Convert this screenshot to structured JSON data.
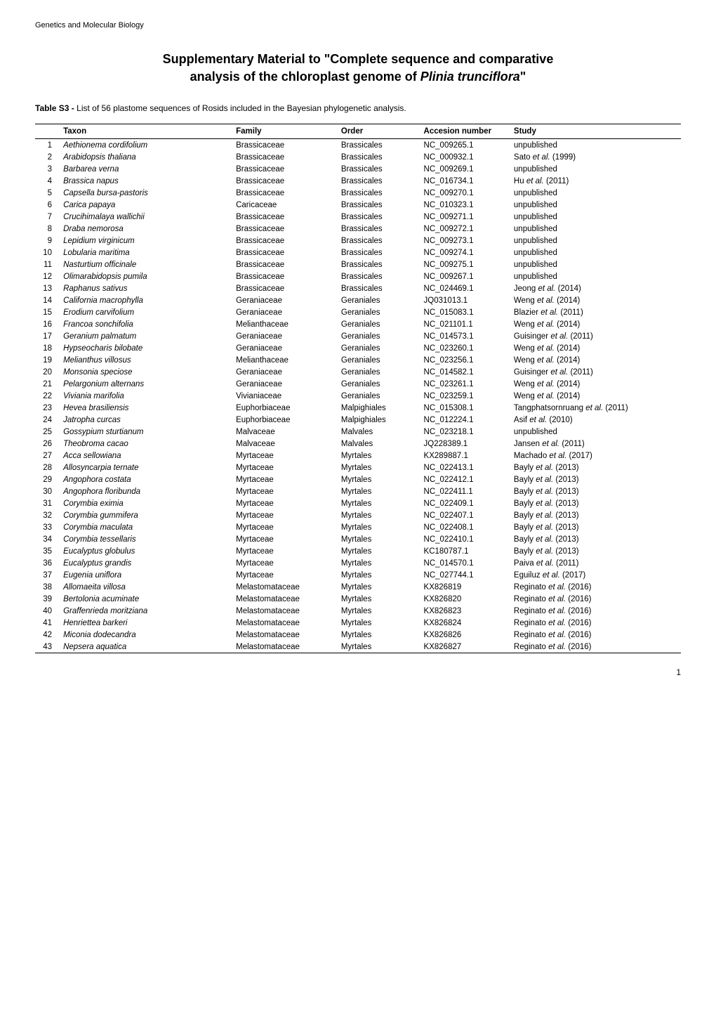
{
  "journal": "Genetics and Molecular Biology",
  "title_line1": "Supplementary Material to \"Complete sequence and comparative",
  "title_line2_prefix": "analysis of the chloroplast genome of ",
  "title_line2_italic": "Plinia trunciflora",
  "title_line2_suffix": "\"",
  "table_caption_bold": "Table S3 - ",
  "table_caption_text": "List of 56 plastome sequences of Rosids included in the Bayesian phylogenetic analysis.",
  "columns": {
    "taxon": "Taxon",
    "family": "Family",
    "order": "Order",
    "accession": "Accesion number",
    "study": "Study"
  },
  "rows": [
    {
      "n": "1",
      "taxon": "Aethionema cordifolium",
      "family": "Brassicaceae",
      "order": "Brassicales",
      "accession": "NC_009265.1",
      "study": "unpublished"
    },
    {
      "n": "2",
      "taxon": "Arabidopsis thaliana",
      "family": "Brassicaceae",
      "order": "Brassicales",
      "accession": "NC_000932.1",
      "author": "Sato",
      "etal": true,
      "year": "(1999)"
    },
    {
      "n": "3",
      "taxon": "Barbarea verna",
      "family": "Brassicaceae",
      "order": "Brassicales",
      "accession": "NC_009269.1",
      "study": "unpublished"
    },
    {
      "n": "4",
      "taxon": "Brassica napus",
      "family": "Brassicaceae",
      "order": "Brassicales",
      "accession": "NC_016734.1",
      "author": "Hu",
      "etal": true,
      "year": "(2011)"
    },
    {
      "n": "5",
      "taxon": "Capsella bursa-pastoris",
      "family": "Brassicaceae",
      "order": "Brassicales",
      "accession": "NC_009270.1",
      "study": "unpublished"
    },
    {
      "n": "6",
      "taxon": "Carica papaya",
      "family": "Caricaceae",
      "order": "Brassicales",
      "accession": "NC_010323.1",
      "study": "unpublished"
    },
    {
      "n": "7",
      "taxon": "Crucihimalaya wallichii",
      "family": "Brassicaceae",
      "order": "Brassicales",
      "accession": "NC_009271.1",
      "study": "unpublished"
    },
    {
      "n": "8",
      "taxon": "Draba nemorosa",
      "family": "Brassicaceae",
      "order": "Brassicales",
      "accession": "NC_009272.1",
      "study": "unpublished"
    },
    {
      "n": "9",
      "taxon": "Lepidium virginicum",
      "family": "Brassicaceae",
      "order": "Brassicales",
      "accession": "NC_009273.1",
      "study": "unpublished"
    },
    {
      "n": "10",
      "taxon": "Lobularia maritima",
      "family": "Brassicaceae",
      "order": "Brassicales",
      "accession": "NC_009274.1",
      "study": "unpublished"
    },
    {
      "n": "11",
      "taxon": "Nasturtium officinale",
      "family": "Brassicaceae",
      "order": "Brassicales",
      "accession": "NC_009275.1",
      "study": "unpublished"
    },
    {
      "n": "12",
      "taxon": "Olimarabidopsis pumila",
      "family": "Brassicaceae",
      "order": "Brassicales",
      "accession": "NC_009267.1",
      "study": "unpublished"
    },
    {
      "n": "13",
      "taxon": "Raphanus sativus",
      "family": "Brassicaceae",
      "order": "Brassicales",
      "accession": "NC_024469.1",
      "author": "Jeong",
      "etal": true,
      "year": "(2014)"
    },
    {
      "n": "14",
      "taxon": "California macrophylla",
      "family": "Geraniaceae",
      "order": "Geraniales",
      "accession": "JQ031013.1",
      "author": "Weng",
      "etal": true,
      "year": "(2014)"
    },
    {
      "n": "15",
      "taxon": "Erodium carvifolium",
      "family": "Geraniaceae",
      "order": "Geraniales",
      "accession": "NC_015083.1",
      "author": "Blazier",
      "etal": true,
      "year": "(2011)"
    },
    {
      "n": "16",
      "taxon": "Francoa sonchifolia",
      "family": "Melianthaceae",
      "order": "Geraniales",
      "accession": "NC_021101.1",
      "author": "Weng",
      "etal": true,
      "year": "(2014)"
    },
    {
      "n": "17",
      "taxon": "Geranium palmatum",
      "family": "Geraniaceae",
      "order": "Geraniales",
      "accession": "NC_014573.1",
      "author": "Guisinger",
      "etal": true,
      "year": "(2011)"
    },
    {
      "n": "18",
      "taxon": "Hypseocharis bilobate",
      "family": "Geraniaceae",
      "order": "Geraniales",
      "accession": "NC_023260.1",
      "author": "Weng",
      "etal": true,
      "year": "(2014)"
    },
    {
      "n": "19",
      "taxon": "Melianthus villosus",
      "family": "Melianthaceae",
      "order": "Geraniales",
      "accession": "NC_023256.1",
      "author": "Weng",
      "etal": true,
      "year": "(2014)"
    },
    {
      "n": "20",
      "taxon": "Monsonia speciose",
      "family": "Geraniaceae",
      "order": "Geraniales",
      "accession": "NC_014582.1",
      "author": "Guisinger",
      "etal": true,
      "year": "(2011)"
    },
    {
      "n": "21",
      "taxon": "Pelargonium alternans",
      "family": "Geraniaceae",
      "order": "Geraniales",
      "accession": "NC_023261.1",
      "author": "Weng",
      "etal": true,
      "year": "(2014)"
    },
    {
      "n": "22",
      "taxon": "Viviania marifolia",
      "family": "Vivianiaceae",
      "order": "Geraniales",
      "accession": "NC_023259.1",
      "author": "Weng",
      "etal": true,
      "year": "(2014)"
    },
    {
      "n": "23",
      "taxon": "Hevea brasiliensis",
      "family": "Euphorbiaceae",
      "order": "Malpighiales",
      "accession": "NC_015308.1",
      "author": "Tangphatsornruang",
      "etal": true,
      "year": "(2011)"
    },
    {
      "n": "24",
      "taxon": "Jatropha curcas",
      "family": "Euphorbiaceae",
      "order": "Malpighiales",
      "accession": "NC_012224.1",
      "author": "Asif",
      "etal": true,
      "year": "(2010)"
    },
    {
      "n": "25",
      "taxon": "Gossypium sturtianum",
      "family": "Malvaceae",
      "order": "Malvales",
      "accession": "NC_023218.1",
      "study": "unpublished"
    },
    {
      "n": "26",
      "taxon": "Theobroma cacao",
      "family": "Malvaceae",
      "order": "Malvales",
      "accession": "JQ228389.1",
      "author": "Jansen",
      "etal": true,
      "year": "(2011)"
    },
    {
      "n": "27",
      "taxon": "Acca sellowiana",
      "family": "Myrtaceae",
      "order": "Myrtales",
      "accession": "KX289887.1",
      "author": "Machado",
      "etal": true,
      "year": "(2017)"
    },
    {
      "n": "28",
      "taxon": "Allosyncarpia ternate",
      "family": "Myrtaceae",
      "order": "Myrtales",
      "accession": "NC_022413.1",
      "author": "Bayly",
      "etal": true,
      "year": "(2013)"
    },
    {
      "n": "29",
      "taxon": "Angophora costata",
      "family": "Myrtaceae",
      "order": "Myrtales",
      "accession": "NC_022412.1",
      "author": "Bayly",
      "etal": true,
      "year": "(2013)"
    },
    {
      "n": "30",
      "taxon": "Angophora floribunda",
      "family": "Myrtaceae",
      "order": "Myrtales",
      "accession": "NC_022411.1",
      "author": "Bayly",
      "etal": true,
      "year": "(2013)"
    },
    {
      "n": "31",
      "taxon": "Corymbia eximia",
      "family": "Myrtaceae",
      "order": "Myrtales",
      "accession": "NC_022409.1",
      "author": "Bayly",
      "etal": true,
      "year": "(2013)"
    },
    {
      "n": "32",
      "taxon": "Corymbia gummifera",
      "family": "Myrtaceae",
      "order": "Myrtales",
      "accession": "NC_022407.1",
      "author": "Bayly",
      "etal": true,
      "year": "(2013)"
    },
    {
      "n": "33",
      "taxon": "Corymbia maculata",
      "family": "Myrtaceae",
      "order": "Myrtales",
      "accession": "NC_022408.1",
      "author": "Bayly",
      "etal": true,
      "year": "(2013)"
    },
    {
      "n": "34",
      "taxon": "Corymbia tessellaris",
      "family": "Myrtaceae",
      "order": "Myrtales",
      "accession": "NC_022410.1",
      "author": "Bayly",
      "etal": true,
      "year": "(2013)"
    },
    {
      "n": "35",
      "taxon": "Eucalyptus globulus",
      "family": "Myrtaceae",
      "order": "Myrtales",
      "accession": "KC180787.1",
      "author": "Bayly",
      "etal": true,
      "year": "(2013)"
    },
    {
      "n": "36",
      "taxon": "Eucalyptus grandis",
      "family": "Myrtaceae",
      "order": "Myrtales",
      "accession": "NC_014570.1",
      "author": "Paiva",
      "etal": true,
      "year": "(2011)"
    },
    {
      "n": "37",
      "taxon": "Eugenia uniflora",
      "family": "Myrtaceae",
      "order": "Myrtales",
      "accession": "NC_027744.1",
      "author": "Eguiluz",
      "etal": true,
      "year": "(2017)"
    },
    {
      "n": "38",
      "taxon": "Allomaeita villosa",
      "family": "Melastomataceae",
      "order": "Myrtales",
      "accession": "KX826819",
      "author": "Reginato",
      "etal": true,
      "year": "(2016)"
    },
    {
      "n": "39",
      "taxon": "Bertolonia acuminate",
      "family": "Melastomataceae",
      "order": "Myrtales",
      "accession": "KX826820",
      "author": "Reginato",
      "etal": true,
      "year": "(2016)"
    },
    {
      "n": "40",
      "taxon": "Graffenrieda moritziana",
      "family": "Melastomataceae",
      "order": "Myrtales",
      "accession": "KX826823",
      "author": "Reginato",
      "etal": true,
      "year": "(2016)"
    },
    {
      "n": "41",
      "taxon": "Henriettea barkeri",
      "family": "Melastomataceae",
      "order": "Myrtales",
      "accession": "KX826824",
      "author": "Reginato",
      "etal": true,
      "year": "(2016)"
    },
    {
      "n": "42",
      "taxon": "Miconia dodecandra",
      "family": "Melastomataceae",
      "order": "Myrtales",
      "accession": "KX826826",
      "author": "Reginato",
      "etal": true,
      "year": "(2016)"
    },
    {
      "n": "43",
      "taxon": "Nepsera aquatica",
      "family": "Melastomataceae",
      "order": "Myrtales",
      "accession": "KX826827",
      "author": "Reginato",
      "etal": true,
      "year": "(2016)"
    }
  ],
  "page_number": "1"
}
